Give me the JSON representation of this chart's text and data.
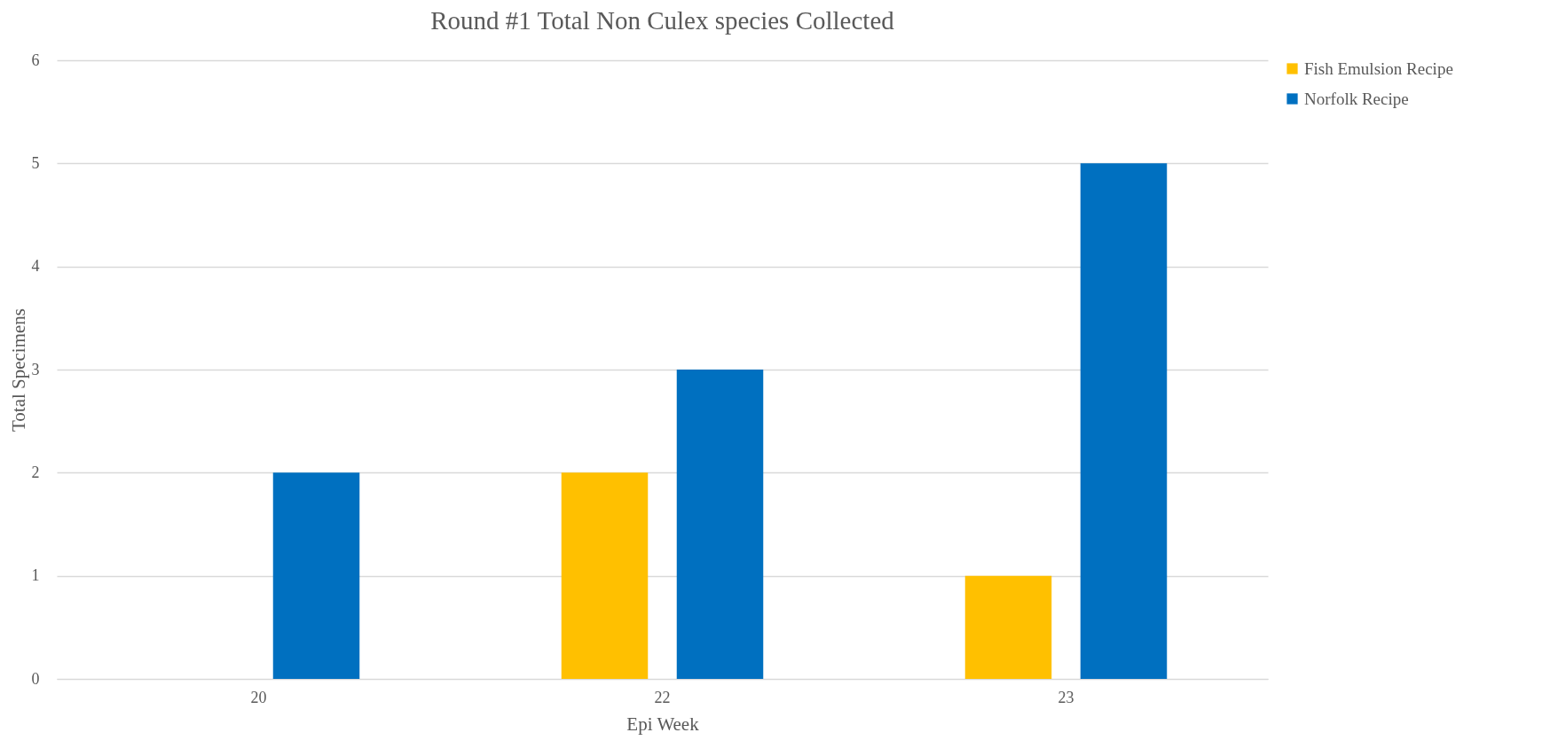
{
  "chart_data": {
    "type": "bar",
    "title": "Round #1 Total Non Culex species Collected",
    "xlabel": "Epi Week",
    "ylabel": "Total Specimens",
    "categories": [
      "20",
      "22",
      "23"
    ],
    "series": [
      {
        "name": "Fish Emulsion Recipe",
        "color": "#ffc000",
        "values": [
          0,
          2,
          1
        ]
      },
      {
        "name": "Norfolk Recipe",
        "color": "#0070c0",
        "values": [
          2,
          3,
          5
        ]
      }
    ],
    "ylim": [
      0,
      6
    ],
    "yticks": [
      0,
      1,
      2,
      3,
      4,
      5,
      6
    ],
    "grid": "y",
    "legend": "right"
  }
}
